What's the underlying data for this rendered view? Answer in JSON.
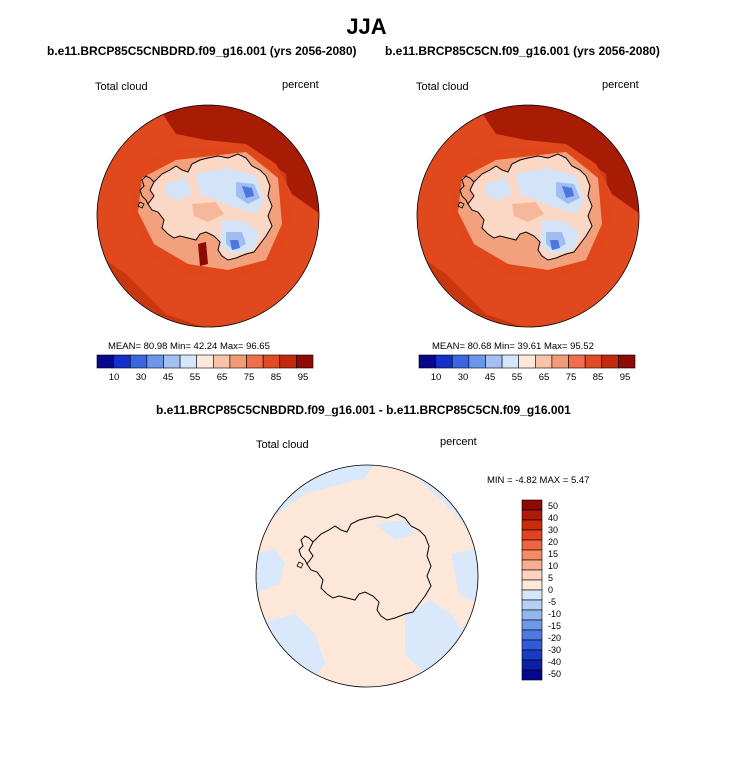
{
  "figure": {
    "title": "JJA"
  },
  "panels": [
    {
      "title": "b.e11.BRCP85C5CNBDRD.f09_g16.001 (yrs 2056-2080)",
      "left_label": "Total cloud",
      "right_label": "percent",
      "stats": "MEAN=  80.98  Min=  42.24  Max=  96.65"
    },
    {
      "title": "b.e11.BRCP85C5CN.f09_g16.001 (yrs 2056-2080)",
      "left_label": "Total cloud",
      "right_label": "percent",
      "stats": "MEAN=  80.68  Min=  39.61  Max=  95.52"
    },
    {
      "title": "b.e11.BRCP85C5CNBDRD.f09_g16.001 - b.e11.BRCP85C5CN.f09_g16.001",
      "left_label": "Total cloud",
      "right_label": "percent",
      "stats": "MIN =  -4.82 MAX =   5.47"
    }
  ],
  "colorbar_horizontal": {
    "colors": [
      "#08088a",
      "#1530c8",
      "#3a66e0",
      "#6b96ea",
      "#a4c0f2",
      "#d6e6f8",
      "#fde9dc",
      "#f8c3a8",
      "#f59a76",
      "#ef6f4a",
      "#e04a24",
      "#c22a0e",
      "#8e0a04"
    ],
    "labels": [
      "10",
      "30",
      "45",
      "55",
      "65",
      "75",
      "85",
      "95"
    ]
  },
  "colorbar_vertical": {
    "colors": [
      "#8e0a04",
      "#b01a08",
      "#cc2a0c",
      "#e34220",
      "#f0643e",
      "#f58a66",
      "#f8ad90",
      "#fbd3bf",
      "#fde9dc",
      "#d6e6f8",
      "#b6cff4",
      "#93b6ef",
      "#6e98ea",
      "#4c7ae4",
      "#2f5bd6",
      "#1a3cc2",
      "#0d20a6",
      "#06088a"
    ],
    "labels": [
      "50",
      "40",
      "30",
      "20",
      "15",
      "10",
      "5",
      "0",
      "-5",
      "-10",
      "-15",
      "-20",
      "-30",
      "-40",
      "-50"
    ]
  },
  "map_colors": {
    "ocean_dark": "#c9370f",
    "ocean_mid": "#e0481d",
    "ocean_deep": "#a81c06",
    "coast_light": "#f3a07d",
    "ice_pale": "#fbd8c6",
    "ice_blue_light": "#d4e4f8",
    "ice_blue_mid": "#9fbdf0",
    "ice_blue_dark": "#4f76dc",
    "diff_peach": "#fde7d8",
    "diff_blue": "#d9e8fa"
  }
}
